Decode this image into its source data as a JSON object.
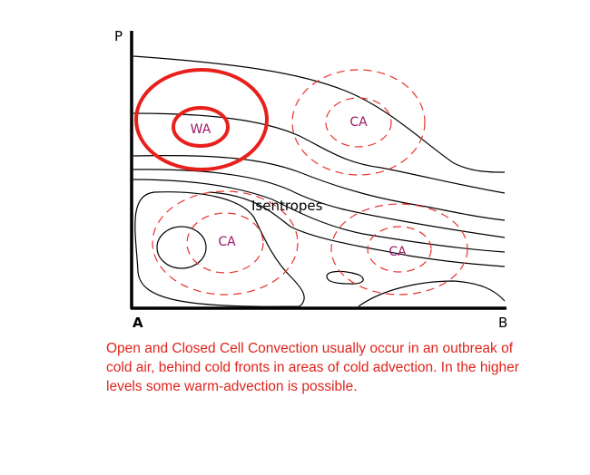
{
  "diagram": {
    "axis_labels": {
      "y": "P",
      "x_start": "A",
      "x_end": "B"
    },
    "regions": [
      {
        "label": "WA"
      },
      {
        "label": "CA"
      },
      {
        "label": "CA"
      },
      {
        "label": "CA"
      }
    ],
    "curve_label": "Isentropes",
    "caption": [
      "Open and Closed Cell Convection usually occur in an outbreak of",
      "cold air, behind cold fronts in areas of cold advection.  In the higher",
      "levels some warm-advection is possible."
    ]
  }
}
